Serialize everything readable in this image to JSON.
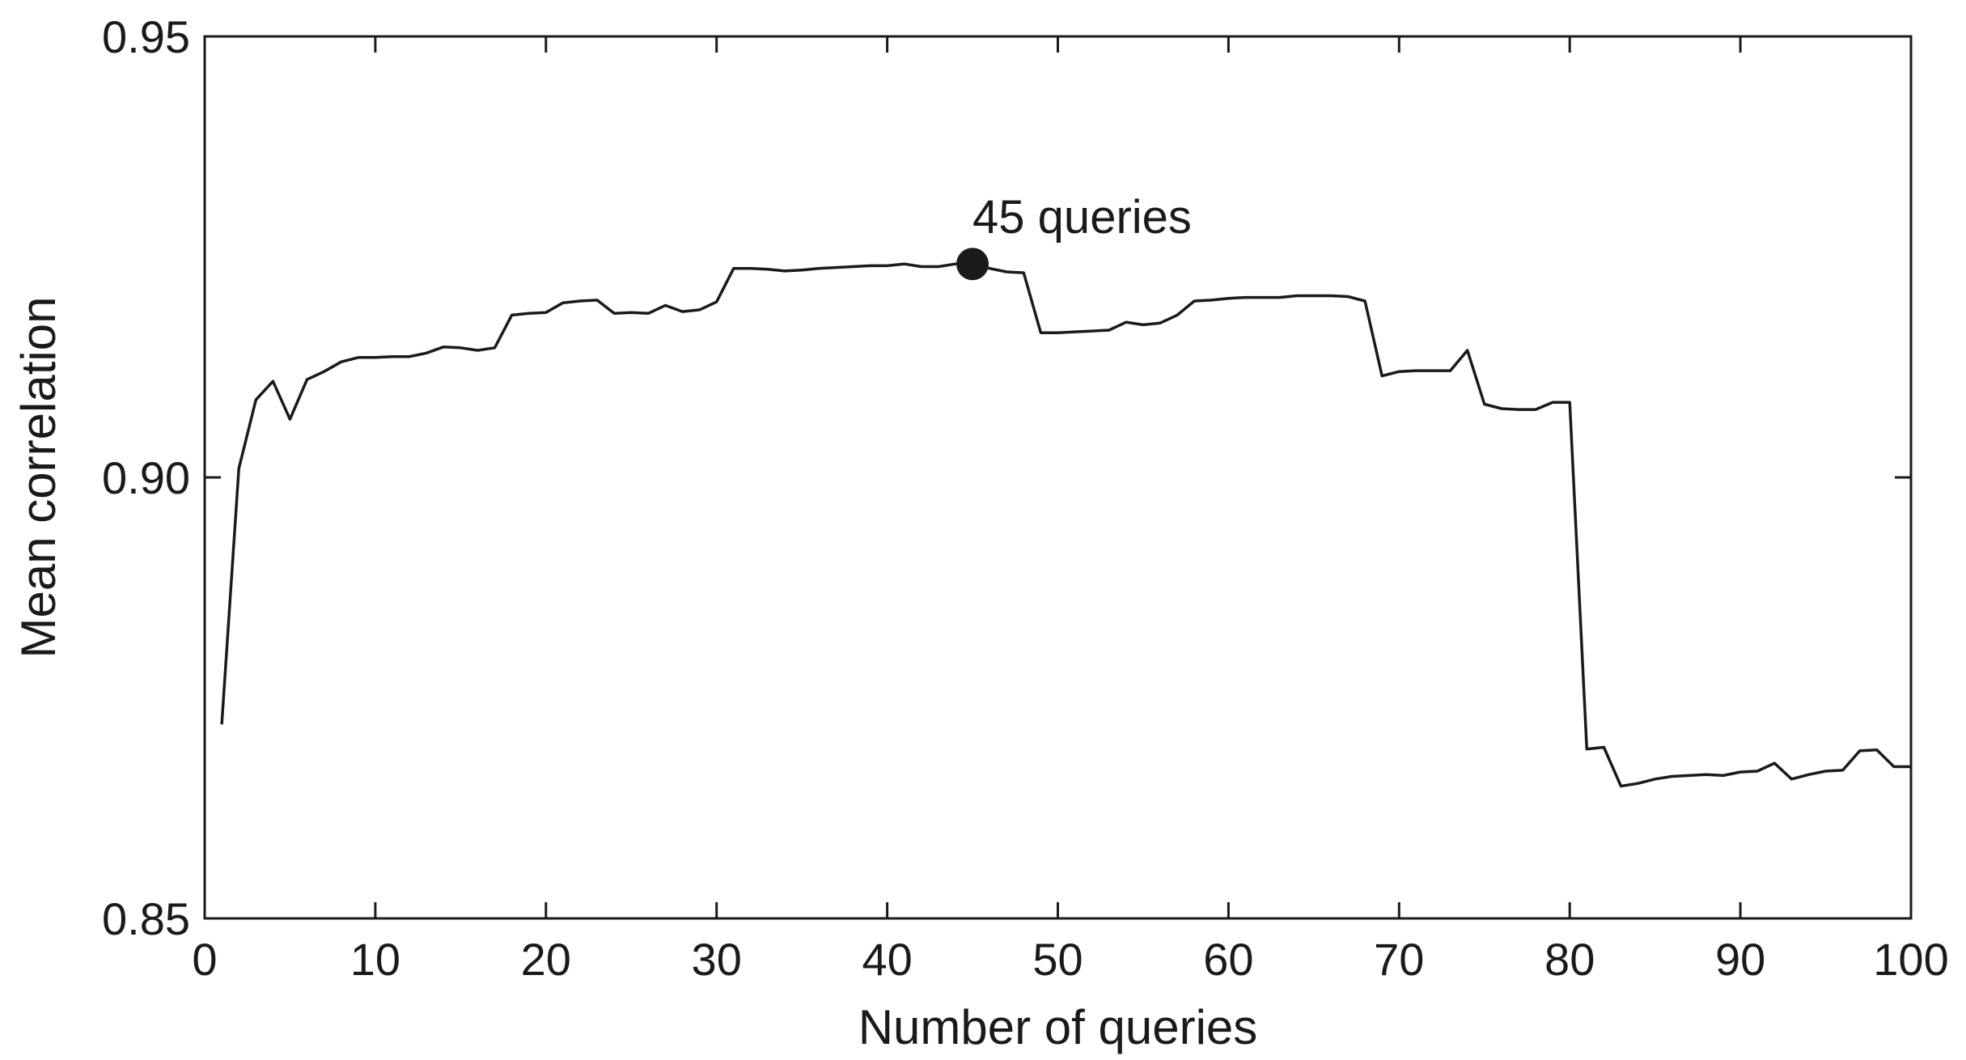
{
  "chart_data": {
    "type": "line",
    "title": "",
    "xlabel": "Number of queries",
    "ylabel": "Mean correlation",
    "xlim": [
      0,
      100
    ],
    "ylim": [
      0.85,
      0.95
    ],
    "xticks": [
      0,
      10,
      20,
      30,
      40,
      50,
      60,
      70,
      80,
      90,
      100
    ],
    "xtick_labels": [
      "0",
      "10",
      "20",
      "30",
      "40",
      "50",
      "60",
      "70",
      "80",
      "90",
      "100"
    ],
    "yticks": [
      0.85,
      0.9,
      0.95
    ],
    "ytick_labels": [
      "0.85",
      "0.90",
      "0.95"
    ],
    "grid": false,
    "series": [
      {
        "x": [
          1,
          2,
          3,
          4,
          5,
          6,
          7,
          8,
          9,
          10,
          11,
          12,
          13,
          14,
          15,
          16,
          17,
          18,
          19,
          20,
          21,
          22,
          23,
          24,
          25,
          26,
          27,
          28,
          29,
          30,
          31,
          32,
          33,
          34,
          35,
          36,
          37,
          38,
          39,
          40,
          41,
          42,
          43,
          44,
          45,
          46,
          47,
          48,
          49,
          50,
          51,
          52,
          53,
          54,
          55,
          56,
          57,
          58,
          59,
          60,
          61,
          62,
          63,
          64,
          65,
          66,
          67,
          68,
          69,
          70,
          71,
          72,
          73,
          74,
          75,
          76,
          77,
          78,
          79,
          80,
          81,
          82,
          83,
          84,
          85,
          86,
          87,
          88,
          89,
          90,
          91,
          92,
          93,
          94,
          95,
          96,
          97,
          98,
          99,
          100
        ],
        "y": [
          0.872,
          0.901,
          0.9088,
          0.9109,
          0.9066,
          0.9111,
          0.912,
          0.9131,
          0.9136,
          0.9136,
          0.9137,
          0.9137,
          0.9141,
          0.9148,
          0.9147,
          0.9144,
          0.9147,
          0.9184,
          0.9186,
          0.9187,
          0.9198,
          0.92,
          0.9201,
          0.9186,
          0.9187,
          0.9186,
          0.9195,
          0.9188,
          0.919,
          0.9199,
          0.9237,
          0.9237,
          0.9236,
          0.9234,
          0.9235,
          0.9237,
          0.9238,
          0.9239,
          0.924,
          0.924,
          0.9242,
          0.9239,
          0.9239,
          0.9242,
          0.9242,
          0.9237,
          0.9233,
          0.9232,
          0.9164,
          0.9164,
          0.9165,
          0.9166,
          0.9167,
          0.9176,
          0.9173,
          0.9175,
          0.9184,
          0.92,
          0.9201,
          0.9203,
          0.9204,
          0.9204,
          0.9204,
          0.9206,
          0.9206,
          0.9206,
          0.9205,
          0.92,
          0.9115,
          0.912,
          0.9121,
          0.9121,
          0.9121,
          0.9144,
          0.9083,
          0.9078,
          0.9077,
          0.9077,
          0.9085,
          0.9085,
          0.8692,
          0.8694,
          0.865,
          0.8653,
          0.8658,
          0.8661,
          0.8662,
          0.8663,
          0.8662,
          0.8666,
          0.8667,
          0.8676,
          0.8658,
          0.8663,
          0.8667,
          0.8668,
          0.869,
          0.8691,
          0.8672,
          0.8672
        ]
      }
    ],
    "annotations": [
      {
        "text": "45 queries",
        "x": 45,
        "y": 0.9242
      }
    ]
  }
}
